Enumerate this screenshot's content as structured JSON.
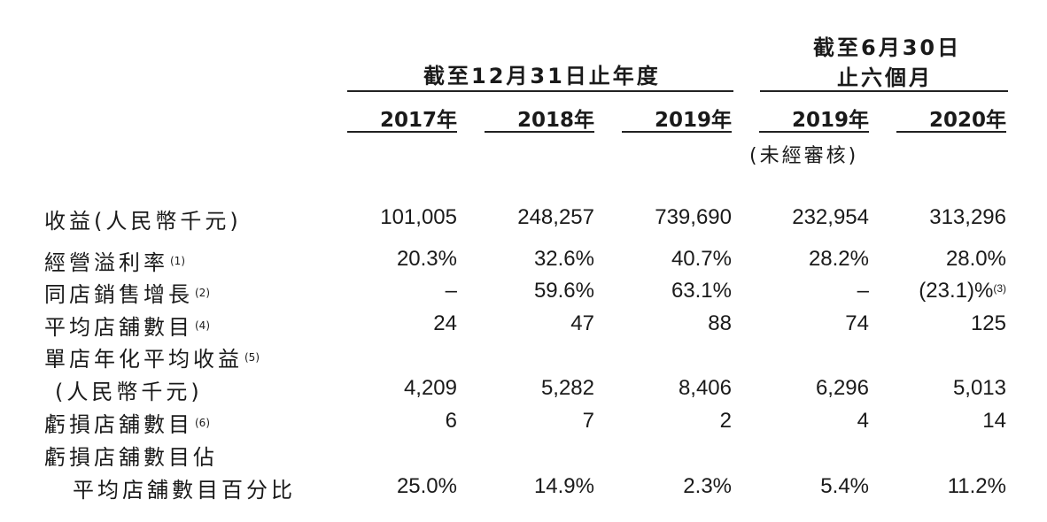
{
  "headers": {
    "group_year": "截至12月31日止年度",
    "group_half_line1": "截至6月30日",
    "group_half_line2": "止六個月",
    "years": [
      "2017年",
      "2018年",
      "2019年",
      "2019年",
      "2020年"
    ],
    "unaudited": "(未經審核)"
  },
  "rows": [
    {
      "label": "收益(人民幣千元)",
      "note": "",
      "values": [
        "101,005",
        "248,257",
        "739,690",
        "232,954",
        "313,296"
      ]
    },
    {
      "label": "經營溢利率",
      "note": "(1)",
      "values": [
        "20.3%",
        "32.6%",
        "40.7%",
        "28.2%",
        "28.0%"
      ]
    },
    {
      "label": "同店銷售增長",
      "note": "(2)",
      "values": [
        "–",
        "59.6%",
        "63.1%",
        "–",
        "(23.1)%"
      ],
      "last_note": "(3)"
    },
    {
      "label": "平均店舖數目",
      "note": "(4)",
      "values": [
        "24",
        "47",
        "88",
        "74",
        "125"
      ]
    },
    {
      "label": "單店年化平均收益",
      "note": "(5)",
      "label2": "(人民幣千元)",
      "values": [
        "4,209",
        "5,282",
        "8,406",
        "6,296",
        "5,013"
      ]
    },
    {
      "label": "虧損店舖數目",
      "note": "(6)",
      "values": [
        "6",
        "7",
        "2",
        "4",
        "14"
      ]
    },
    {
      "label": "虧損店舖數目佔",
      "note": "",
      "label2": "平均店舖數目百分比",
      "values": [
        "25.0%",
        "14.9%",
        "2.3%",
        "5.4%",
        "11.2%"
      ]
    }
  ]
}
